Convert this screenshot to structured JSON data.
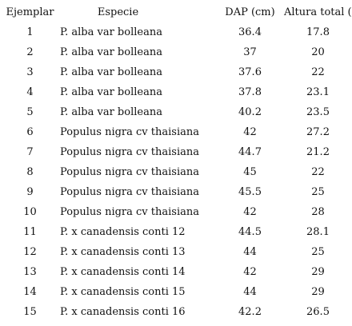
{
  "table": {
    "headers": {
      "ejemplar": "Ejemplar",
      "especie": "Especie",
      "dap": "DAP (cm)",
      "altura": "Altura total (m)"
    },
    "rows": [
      {
        "ejemplar": "1",
        "especie": "P. alba var bolleana",
        "dap": "36.4",
        "altura": "17.8"
      },
      {
        "ejemplar": "2",
        "especie": "P. alba var bolleana",
        "dap": "37",
        "altura": "20"
      },
      {
        "ejemplar": "3",
        "especie": "P. alba var bolleana",
        "dap": "37.6",
        "altura": "22"
      },
      {
        "ejemplar": "4",
        "especie": "P. alba var bolleana",
        "dap": "37.8",
        "altura": "23.1"
      },
      {
        "ejemplar": "5",
        "especie": "P. alba var bolleana",
        "dap": "40.2",
        "altura": "23.5"
      },
      {
        "ejemplar": "6",
        "especie": "Populus nigra cv thaisiana",
        "dap": "42",
        "altura": "27.2"
      },
      {
        "ejemplar": "7",
        "especie": "Populus nigra cv thaisiana",
        "dap": "44.7",
        "altura": "21.2"
      },
      {
        "ejemplar": "8",
        "especie": "Populus nigra cv thaisiana",
        "dap": "45",
        "altura": "22"
      },
      {
        "ejemplar": "9",
        "especie": "Populus nigra cv thaisiana",
        "dap": "45.5",
        "altura": "25"
      },
      {
        "ejemplar": "10",
        "especie": "Populus nigra cv thaisiana",
        "dap": "42",
        "altura": "28"
      },
      {
        "ejemplar": "11",
        "especie": "P. x canadensis conti 12",
        "dap": "44.5",
        "altura": "28.1"
      },
      {
        "ejemplar": "12",
        "especie": "P. x canadensis conti 13",
        "dap": "44",
        "altura": "25"
      },
      {
        "ejemplar": "13",
        "especie": "P. x canadensis conti 14",
        "dap": "42",
        "altura": "29"
      },
      {
        "ejemplar": "14",
        "especie": "P. x canadensis conti 15",
        "dap": "44",
        "altura": "29"
      },
      {
        "ejemplar": "15",
        "especie": "P. x canadensis conti 16",
        "dap": "42.2",
        "altura": "26.5"
      }
    ]
  }
}
